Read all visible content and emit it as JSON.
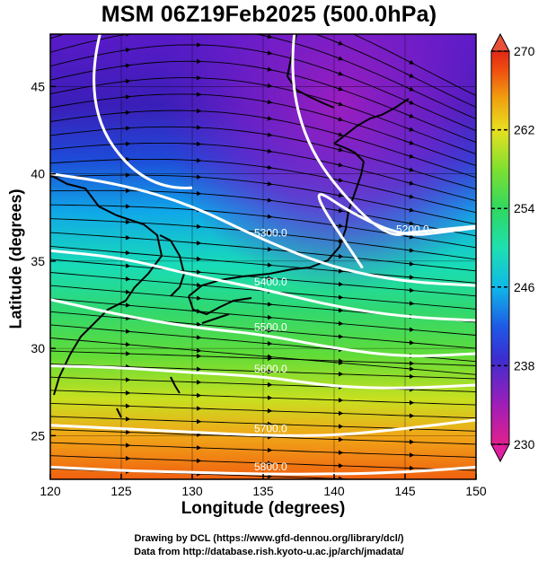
{
  "title": "MSM 06Z19Feb2025 (500.0hPa)",
  "xaxis": {
    "label": "Longitude (degrees)",
    "range": [
      120,
      150
    ],
    "ticks": [
      "120",
      "125",
      "130",
      "135",
      "140",
      "145",
      "150"
    ]
  },
  "yaxis": {
    "label": "Latitude  (degrees)",
    "range": [
      22.5,
      48
    ],
    "ticks": [
      "25",
      "30",
      "35",
      "40",
      "45"
    ]
  },
  "colorbar": {
    "range": [
      230,
      270
    ],
    "ticks": [
      "270",
      "262",
      "254",
      "246",
      "238",
      "230"
    ],
    "colors": [
      "#e0208c",
      "#8a1ec8",
      "#3a2ed0",
      "#1e5ae6",
      "#10b8e8",
      "#1ee0b0",
      "#30d860",
      "#7ee030",
      "#e8e020",
      "#f0a010",
      "#f05010",
      "#e02818"
    ]
  },
  "contours": [
    {
      "label": "5300.0",
      "points": [
        [
          120,
          40.0
        ],
        [
          125,
          39.4
        ],
        [
          130,
          38.2
        ],
        [
          135,
          36.2
        ],
        [
          140,
          34.6
        ],
        [
          145,
          33.8
        ],
        [
          150,
          33.6
        ]
      ]
    },
    {
      "label": "5200.0",
      "points": [
        [
          142,
          34.6
        ],
        [
          138,
          39.5
        ],
        [
          141.5,
          37.6
        ],
        [
          145,
          36.4
        ],
        [
          148,
          36.7
        ],
        [
          150,
          36.9
        ]
      ],
      "rawdraw": true
    },
    {
      "label": "5400.0",
      "points": [
        [
          120,
          35.6
        ],
        [
          125,
          35.2
        ],
        [
          130,
          34.2
        ],
        [
          135,
          33.4
        ],
        [
          140,
          32.4
        ],
        [
          145,
          31.8
        ],
        [
          150,
          31.6
        ]
      ]
    },
    {
      "label": "5500.0",
      "points": [
        [
          120,
          32.8
        ],
        [
          125,
          31.9
        ],
        [
          130,
          31.2
        ],
        [
          135,
          30.8
        ],
        [
          140,
          30.0
        ],
        [
          145,
          29.5
        ],
        [
          150,
          29.7
        ]
      ]
    },
    {
      "label": "5600.0",
      "points": [
        [
          120,
          29.0
        ],
        [
          125,
          28.9
        ],
        [
          130,
          28.6
        ],
        [
          135,
          28.4
        ],
        [
          140,
          27.8
        ],
        [
          145,
          27.7
        ],
        [
          150,
          27.9
        ]
      ]
    },
    {
      "label": "5700.0",
      "points": [
        [
          120,
          25.6
        ],
        [
          125,
          25.4
        ],
        [
          130,
          25.2
        ],
        [
          135,
          25.0
        ],
        [
          140,
          25.0
        ],
        [
          145,
          25.4
        ],
        [
          150,
          25.9
        ]
      ]
    },
    {
      "label": "5800.0",
      "points": [
        [
          120,
          23.2
        ],
        [
          125,
          23.0
        ],
        [
          130,
          22.9
        ],
        [
          135,
          22.8
        ],
        [
          140,
          22.8
        ],
        [
          145,
          22.9
        ],
        [
          150,
          23.2
        ]
      ]
    }
  ],
  "credits": {
    "line1": "Drawing by DCL (https://www.gfd-dennou.org/library/dcl/)",
    "line2": "Data from http://database.rish.kyoto-u.ac.jp/arch/jmadata/"
  }
}
